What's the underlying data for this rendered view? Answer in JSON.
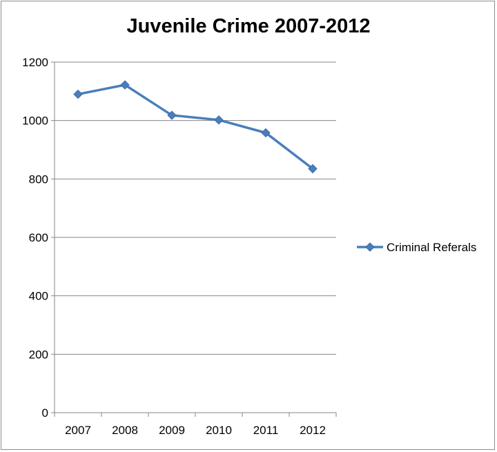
{
  "chart_data": {
    "type": "line",
    "title": "Juvenile Crime 2007-2012",
    "xlabel": "",
    "ylabel": "",
    "categories": [
      "2007",
      "2008",
      "2009",
      "2010",
      "2011",
      "2012"
    ],
    "series": [
      {
        "name": "Criminal Referals",
        "values": [
          1090,
          1122,
          1018,
          1002,
          958,
          835
        ]
      }
    ],
    "ylim": [
      0,
      1200
    ],
    "yticks": [
      0,
      200,
      400,
      600,
      800,
      1000,
      1200
    ],
    "grid": true,
    "legend": "right",
    "colors": {
      "series": "#4a7ebb",
      "grid": "#868686"
    }
  }
}
